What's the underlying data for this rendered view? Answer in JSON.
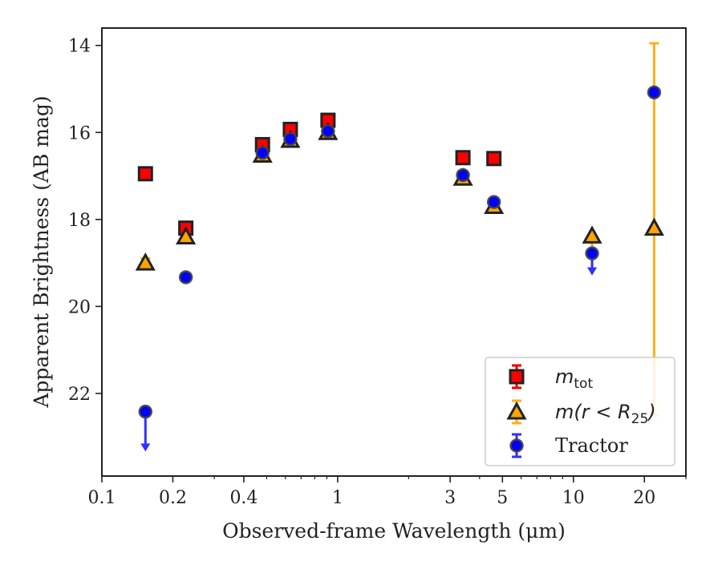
{
  "chart_data": {
    "type": "scatter",
    "xlabel": "Observed-frame Wavelength (μm)",
    "ylabel": "Apparent Brightness (AB mag)",
    "x_scale": "log",
    "xlim": [
      0.1,
      30
    ],
    "ylim": [
      23.9,
      13.6
    ],
    "y_inverted": true,
    "x_ticks": [
      {
        "value": 0.1,
        "label": "0.1"
      },
      {
        "value": 0.2,
        "label": "0.2"
      },
      {
        "value": 0.4,
        "label": "0.4"
      },
      {
        "value": 1,
        "label": "1"
      },
      {
        "value": 3,
        "label": "3"
      },
      {
        "value": 5,
        "label": "5"
      },
      {
        "value": 10,
        "label": "10"
      },
      {
        "value": 20,
        "label": "20"
      }
    ],
    "y_ticks": [
      {
        "value": 14,
        "label": "14"
      },
      {
        "value": 16,
        "label": "16"
      },
      {
        "value": 18,
        "label": "18"
      },
      {
        "value": 20,
        "label": "20"
      },
      {
        "value": 22,
        "label": "22"
      }
    ],
    "grid": false,
    "legend_position": "bottom-right",
    "series": [
      {
        "name": "m_tot",
        "legend_main": "m",
        "legend_sub": "tot",
        "marker": "square",
        "color": "#ff0000",
        "points": [
          {
            "x": 0.153,
            "y": 16.95
          },
          {
            "x": 0.227,
            "y": 18.2
          },
          {
            "x": 0.48,
            "y": 16.28
          },
          {
            "x": 0.63,
            "y": 15.93
          },
          {
            "x": 0.91,
            "y": 15.72
          },
          {
            "x": 3.4,
            "y": 16.58
          },
          {
            "x": 4.6,
            "y": 16.6
          }
        ]
      },
      {
        "name": "m(r < R25)",
        "legend_main": "m(r < R",
        "legend_sub": "25",
        "legend_end": ")",
        "marker": "triangle",
        "color": "#ffa500",
        "points": [
          {
            "x": 0.153,
            "y": 19.0,
            "err_low": 18.9,
            "err_high": 19.1
          },
          {
            "x": 0.227,
            "y": 18.4
          },
          {
            "x": 0.48,
            "y": 16.52
          },
          {
            "x": 0.63,
            "y": 16.18
          },
          {
            "x": 0.91,
            "y": 16.0
          },
          {
            "x": 3.4,
            "y": 17.05
          },
          {
            "x": 4.6,
            "y": 17.7
          },
          {
            "x": 12,
            "y": 18.38,
            "upper_limit_to": 19.25
          },
          {
            "x": 22,
            "y": 18.2,
            "err_low": 13.95,
            "err_high": 22.5
          }
        ]
      },
      {
        "name": "Tractor",
        "marker": "circle",
        "color": "#0000ff",
        "points": [
          {
            "x": 0.153,
            "y": 22.42,
            "upper_limit_to": 23.3
          },
          {
            "x": 0.227,
            "y": 19.33
          },
          {
            "x": 0.48,
            "y": 16.47
          },
          {
            "x": 0.63,
            "y": 16.15
          },
          {
            "x": 0.91,
            "y": 15.97
          },
          {
            "x": 3.4,
            "y": 16.98
          },
          {
            "x": 4.6,
            "y": 17.6
          },
          {
            "x": 12,
            "y": 18.78,
            "upper_limit_to": 19.25
          },
          {
            "x": 22,
            "y": 15.08
          }
        ]
      }
    ]
  }
}
